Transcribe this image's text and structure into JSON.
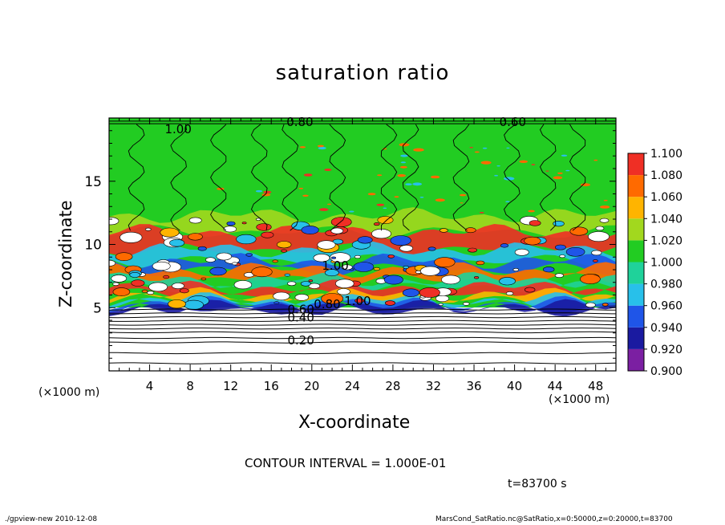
{
  "chart_data": {
    "type": "heatmap",
    "title": "saturation ratio",
    "xlabel": "X-coordinate",
    "ylabel": "Z-coordinate",
    "x_unit_label": "(×1000 m)",
    "x_unit_label_right": "(×1000 m)",
    "xlim": [
      0,
      50
    ],
    "ylim": [
      0,
      20
    ],
    "x_ticks": [
      4,
      8,
      12,
      16,
      20,
      24,
      28,
      32,
      36,
      40,
      44,
      48
    ],
    "y_ticks": [
      5,
      10,
      15
    ],
    "colorbar": {
      "levels": [
        "0.900",
        "0.920",
        "0.940",
        "0.960",
        "0.980",
        "1.000",
        "1.020",
        "1.040",
        "1.060",
        "1.080",
        "1.100"
      ],
      "colors": [
        "#7b1fa2",
        "#1a1aa0",
        "#1f55e8",
        "#28c0ea",
        "#1fd29a",
        "#22cc22",
        "#a2d81e",
        "#ffb400",
        "#ff6a00",
        "#ef2f25",
        "#f7a0a0"
      ]
    },
    "contour_labels": [
      "0.80",
      "0.60",
      "1.00",
      "1.00",
      "1.00",
      "0.80",
      "0.60",
      "0.40",
      "0.20"
    ],
    "contour_interval": "CONTOUR INTERVAL = 1.000E-01",
    "time": "t=83700 s"
  },
  "footer": {
    "left": "./gpview-new  2010-12-08",
    "right": "MarsCond_SatRatio.nc@SatRatio,x=0:50000,z=0:20000,t=83700"
  }
}
